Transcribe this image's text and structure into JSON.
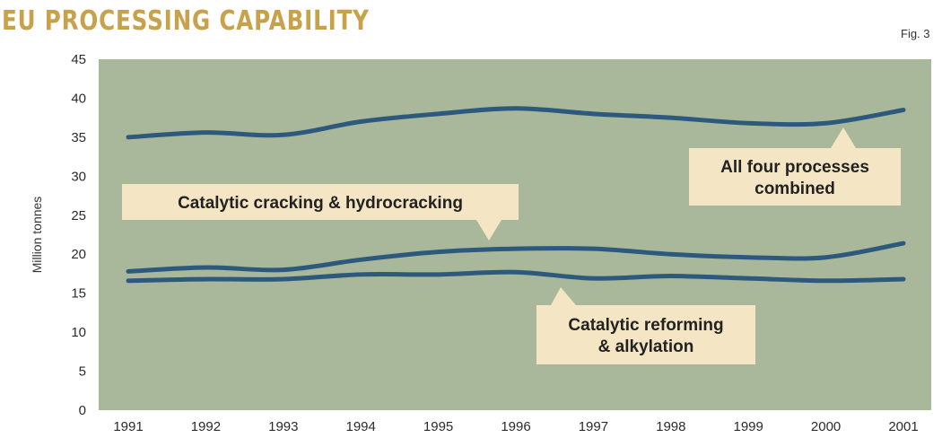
{
  "chart_title": "EU PROCESSING CAPABILITY",
  "figure_label": "Fig. 3",
  "colors": {
    "title": "#c8a24a",
    "plot_bg": "#a9b79a",
    "line": "#2d5a7c",
    "callout_bg": "#f4e6c4"
  },
  "chart_data": {
    "type": "line",
    "title": "EU PROCESSING CAPABILITY",
    "xlabel": "",
    "ylabel": "Million tonnes",
    "ylim": [
      0,
      45
    ],
    "yticks": [
      0,
      5,
      10,
      15,
      20,
      25,
      30,
      35,
      40,
      45
    ],
    "x": [
      "1991",
      "1992",
      "1993",
      "1994",
      "1995",
      "1996",
      "1997",
      "1998",
      "1999",
      "2000",
      "2001"
    ],
    "grid": false,
    "legend": "callouts",
    "series": [
      {
        "name": "All four processes combined",
        "values": [
          35.0,
          35.6,
          35.3,
          37.0,
          38.0,
          38.7,
          38.0,
          37.5,
          36.8,
          36.8,
          38.5
        ]
      },
      {
        "name": "Catalytic cracking & hydrocracking",
        "values": [
          17.8,
          18.3,
          18.0,
          19.3,
          20.3,
          20.7,
          20.7,
          20.0,
          19.6,
          19.6,
          21.4
        ]
      },
      {
        "name": "Catalytic reforming & alkylation",
        "values": [
          16.6,
          16.8,
          16.8,
          17.4,
          17.4,
          17.7,
          16.9,
          17.2,
          16.9,
          16.6,
          16.8
        ]
      }
    ],
    "callouts": [
      {
        "lines": [
          "All four processes",
          "combined"
        ]
      },
      {
        "lines": [
          "Catalytic cracking & hydrocracking"
        ]
      },
      {
        "lines": [
          "Catalytic reforming",
          "& alkylation"
        ]
      }
    ]
  }
}
